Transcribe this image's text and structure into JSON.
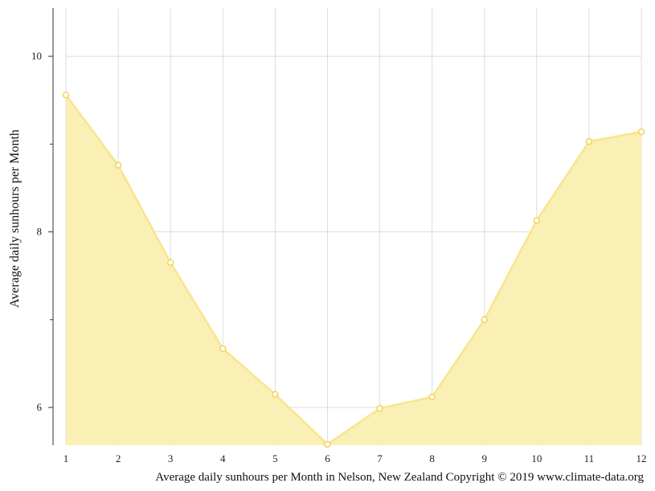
{
  "chart_data": {
    "type": "area",
    "title": "",
    "xlabel": "",
    "ylabel": "Average daily sunhours per Month",
    "caption": "Average daily sunhours per Month in Nelson, New Zealand Copyright © 2019 www.climate-data.org",
    "x": [
      1,
      2,
      3,
      4,
      5,
      6,
      7,
      8,
      9,
      10,
      11,
      12
    ],
    "x_tick_labels": [
      "1",
      "2",
      "3",
      "4",
      "5",
      "6",
      "7",
      "8",
      "9",
      "10",
      "11",
      "12"
    ],
    "y_tick_labels": [
      "10",
      "8",
      "6"
    ],
    "y_ticks": [
      10,
      8,
      6
    ],
    "y_minor_ticks": [
      9,
      7
    ],
    "xlim": [
      1,
      12
    ],
    "ylim": [
      5.57,
      10.55
    ],
    "grid": true,
    "series": [
      {
        "values": [
          9.56,
          8.76,
          7.65,
          6.67,
          6.15,
          5.58,
          5.99,
          6.12,
          7.0,
          8.13,
          9.03,
          9.14
        ]
      }
    ],
    "colors": {
      "fill": "#faeeb0",
      "line": "#f9e58d",
      "marker_stroke": "#f1cf3f",
      "marker_fill": "#ffffff",
      "grid": "#dcdcdc",
      "axis": "#333333"
    }
  }
}
